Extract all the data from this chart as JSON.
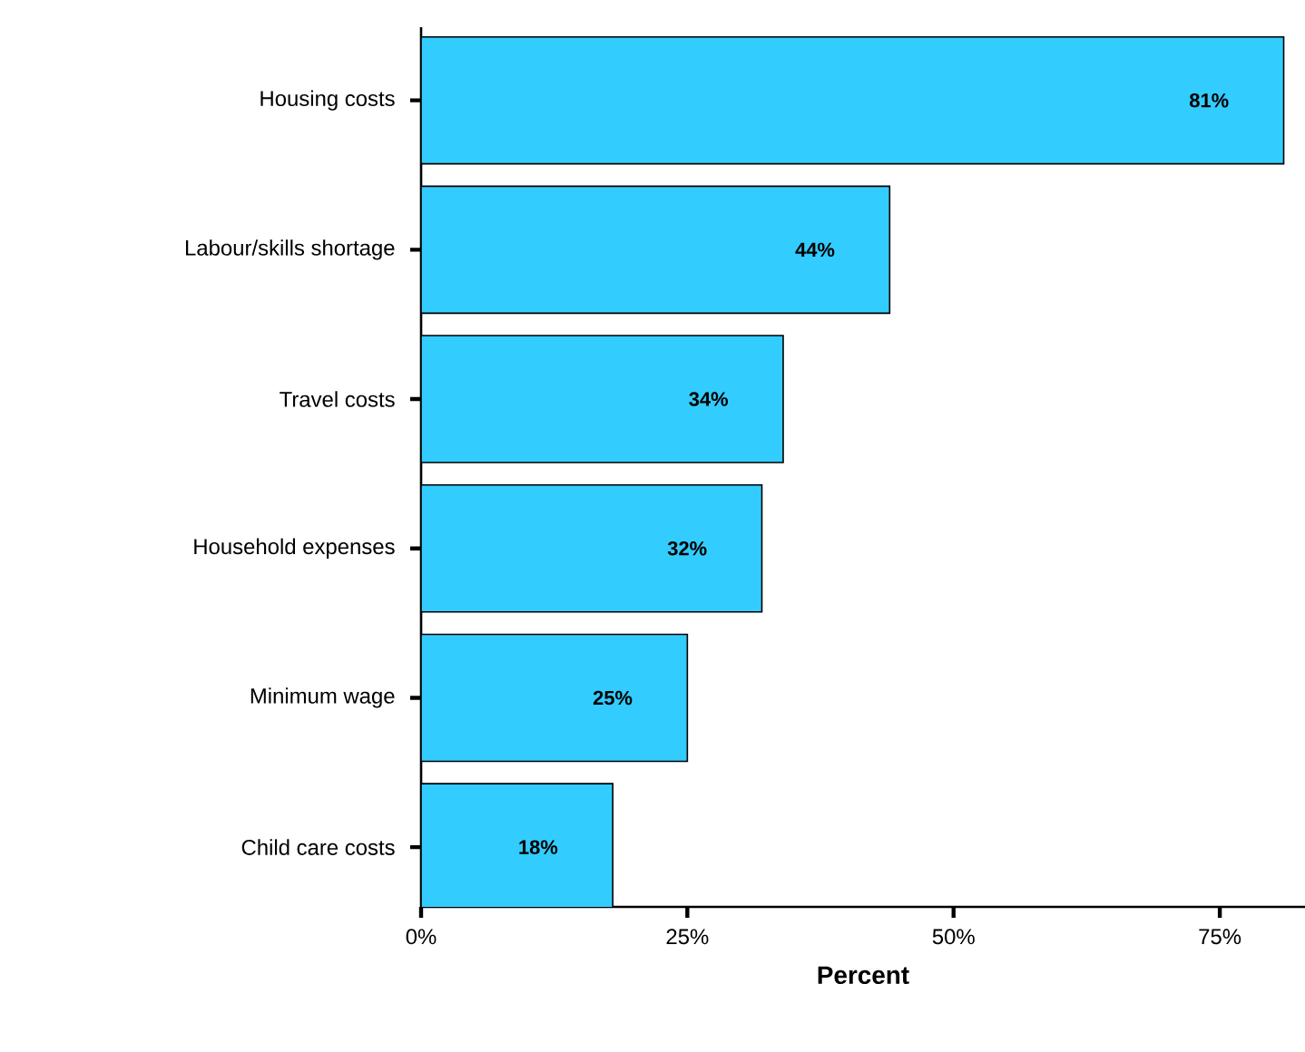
{
  "chart_data": {
    "type": "bar",
    "orientation": "horizontal",
    "xlabel": "Percent",
    "categories": [
      "Housing costs",
      "Labour/skills shortage",
      "Travel costs",
      "Household expenses",
      "Minimum wage",
      "Child care costs"
    ],
    "values": [
      81,
      44,
      34,
      32,
      25,
      18
    ],
    "value_labels": [
      "81%",
      "44%",
      "34%",
      "32%",
      "25%",
      "18%"
    ],
    "color": "#33ccff",
    "xlim": [
      0,
      83
    ],
    "xticks": [
      {
        "value": 0,
        "label": "0%"
      },
      {
        "value": 25,
        "label": "25%"
      },
      {
        "value": 50,
        "label": "50%"
      },
      {
        "value": 75,
        "label": "75%"
      }
    ],
    "grid": false
  }
}
